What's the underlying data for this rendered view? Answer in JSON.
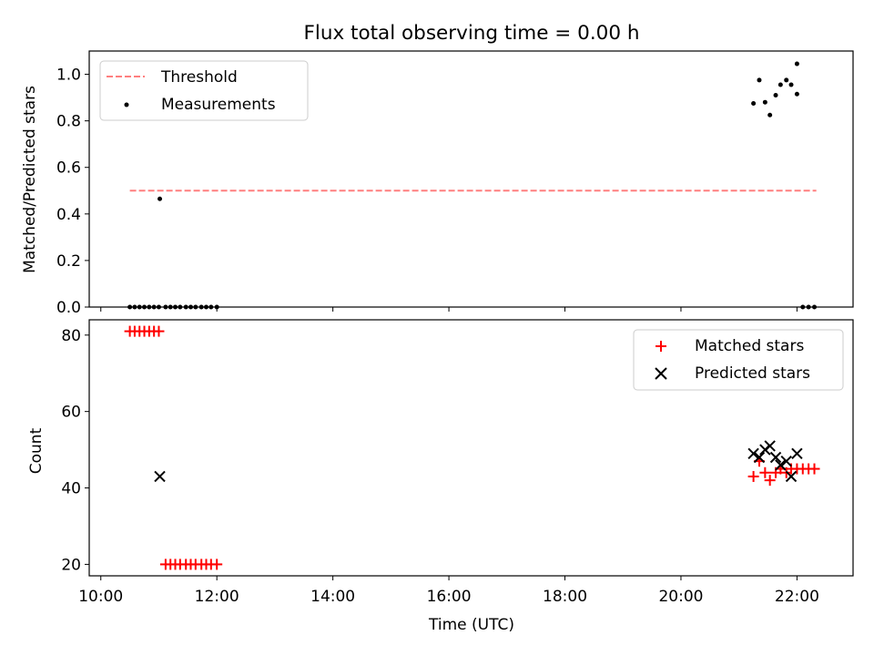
{
  "title": "Flux total observing time = 0.00 h",
  "colors": {
    "threshold": "#ff7f7f",
    "measurement": "#000000",
    "matched": "#ff0000",
    "predicted": "#000000"
  },
  "chart_data": [
    {
      "type": "scatter",
      "title": "Flux total observing time = 0.00 h",
      "xlabel": "",
      "ylabel": "Matched/Predicted stars",
      "xlim": [
        "09:48",
        "22:58"
      ],
      "ylim": [
        0,
        1.1
      ],
      "yticks": [
        0.0,
        0.2,
        0.4,
        0.6,
        0.8,
        1.0
      ],
      "yticklabels": [
        "0.0",
        "0.2",
        "0.4",
        "0.6",
        "0.8",
        "1.0"
      ],
      "legend_position": "top-left",
      "threshold": {
        "name": "Threshold",
        "value": 0.5,
        "x": [
          "10:30",
          "22:20"
        ]
      },
      "series": [
        {
          "name": "Measurements",
          "x": [
            "10:30",
            "10:35",
            "10:40",
            "10:45",
            "10:50",
            "10:55",
            "11:00",
            "11:01",
            "11:07",
            "11:12",
            "11:17",
            "11:22",
            "11:28",
            "11:33",
            "11:38",
            "11:44",
            "11:49",
            "11:54",
            "12:00",
            "21:15",
            "21:21",
            "21:27",
            "21:32",
            "21:38",
            "21:43",
            "21:49",
            "21:54",
            "22:00",
            "22:00",
            "22:06",
            "22:12",
            "22:18"
          ],
          "y": [
            0,
            0,
            0,
            0,
            0,
            0,
            0,
            0.465,
            0,
            0,
            0,
            0,
            0,
            0,
            0,
            0,
            0,
            0,
            0,
            0.875,
            0.975,
            0.88,
            0.825,
            0.91,
            0.955,
            0.975,
            0.955,
            1.045,
            0.915,
            0,
            0,
            0
          ]
        }
      ]
    },
    {
      "type": "scatter",
      "xlabel": "Time (UTC)",
      "ylabel": "Count",
      "xlim": [
        "09:48",
        "22:58"
      ],
      "ylim": [
        17,
        84
      ],
      "xticks": [
        "10:00",
        "12:00",
        "14:00",
        "16:00",
        "18:00",
        "20:00",
        "22:00"
      ],
      "yticks": [
        20,
        40,
        60,
        80
      ],
      "legend_position": "top-right",
      "series": [
        {
          "name": "Matched stars",
          "marker": "+",
          "x": [
            "10:30",
            "10:35",
            "10:40",
            "10:45",
            "10:50",
            "10:55",
            "11:00",
            "11:07",
            "11:12",
            "11:17",
            "11:22",
            "11:28",
            "11:33",
            "11:38",
            "11:44",
            "11:49",
            "11:54",
            "12:00",
            "21:15",
            "21:21",
            "21:27",
            "21:32",
            "21:38",
            "21:43",
            "21:49",
            "21:54",
            "22:00",
            "22:06",
            "22:12",
            "22:18"
          ],
          "y": [
            81,
            81,
            81,
            81,
            81,
            81,
            81,
            20,
            20,
            20,
            20,
            20,
            20,
            20,
            20,
            20,
            20,
            20,
            43,
            47,
            44,
            42,
            44,
            45,
            44,
            45,
            45,
            45,
            45,
            45
          ]
        },
        {
          "name": "Predicted stars",
          "marker": "x",
          "x": [
            "11:01",
            "21:15",
            "21:21",
            "21:27",
            "21:32",
            "21:38",
            "21:43",
            "21:49",
            "21:54",
            "22:00"
          ],
          "y": [
            43,
            49,
            48,
            50,
            51,
            48,
            46,
            47,
            43,
            49
          ]
        }
      ]
    }
  ]
}
